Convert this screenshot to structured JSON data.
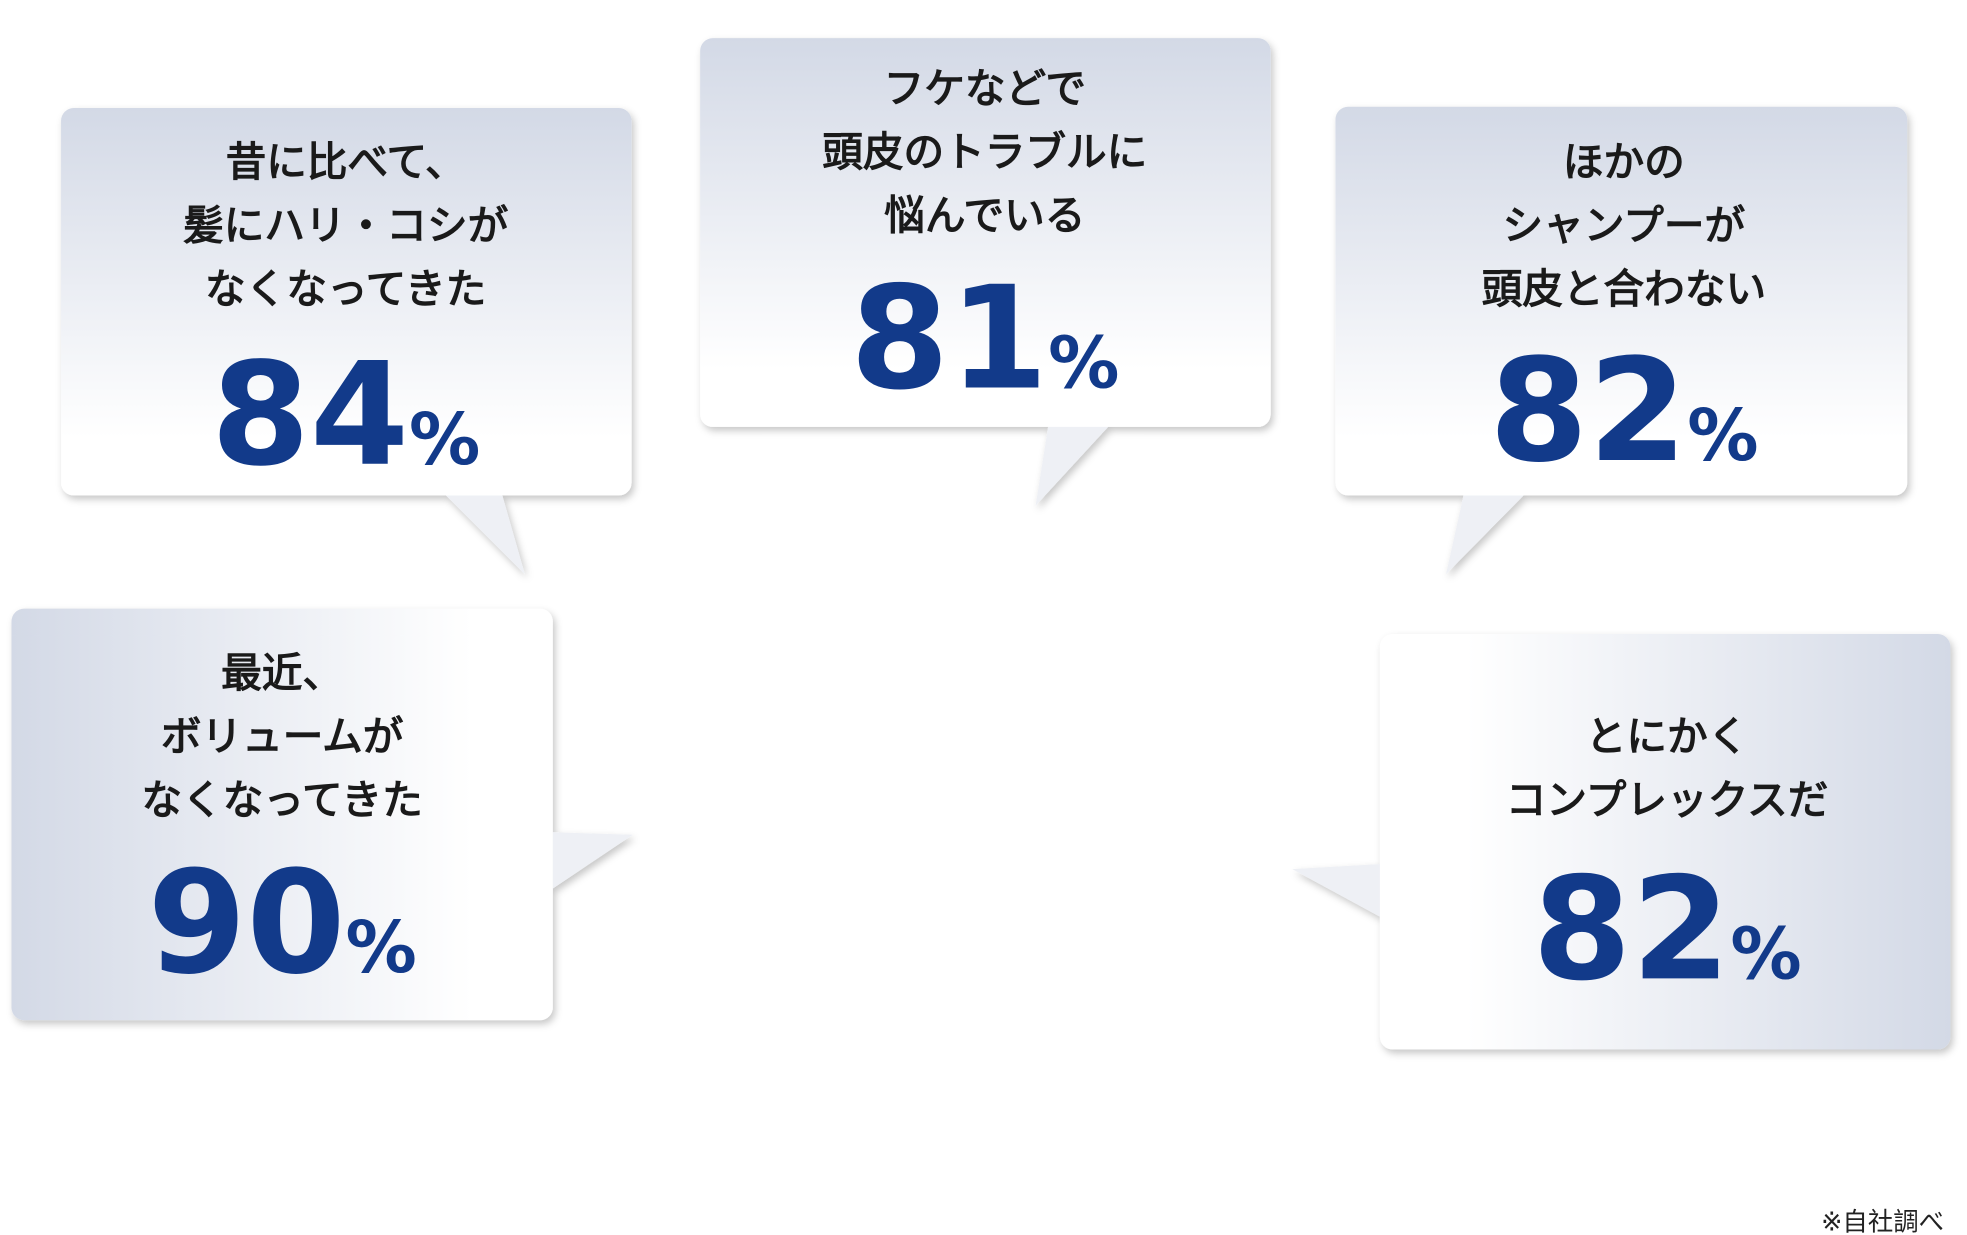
{
  "bubbles": [
    {
      "lines": [
        "昔に比べて、",
        "髪にハリ・コシが",
        "なくなってきた"
      ],
      "value": 84,
      "unit": "%"
    },
    {
      "lines": [
        "フケなどで",
        "頭皮のトラブルに",
        "悩んでいる"
      ],
      "value": 81,
      "unit": "%"
    },
    {
      "lines": [
        "ほかの",
        "シャンプーが",
        "頭皮と合わない"
      ],
      "value": 82,
      "unit": "%"
    },
    {
      "lines": [
        "最近、",
        "ボリュームが",
        "なくなってきた"
      ],
      "value": 90,
      "unit": "%"
    },
    {
      "lines": [
        "とにかく",
        "コンプレックスだ"
      ],
      "value": 82,
      "unit": "%"
    }
  ],
  "footnote": "※自社調べ"
}
